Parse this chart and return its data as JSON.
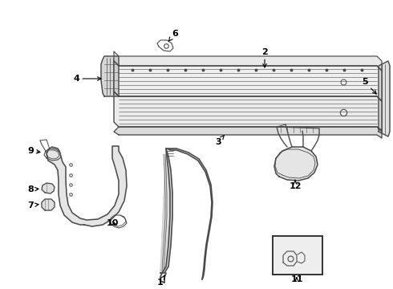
{
  "bg_color": "#ffffff",
  "lc": "#4a4a4a",
  "fc": "#d0d0d0",
  "figsize": [
    4.9,
    3.6
  ],
  "dpi": 100
}
